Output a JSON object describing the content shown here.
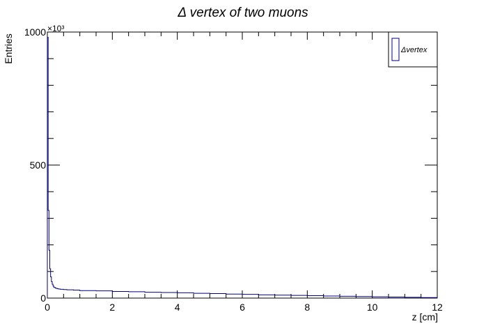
{
  "chart_data": {
    "type": "histogram",
    "title": "Δ   vertex   of   two   muons",
    "xlabel": "z [cm]",
    "ylabel": "Entries",
    "y_multiplier": "×10³",
    "xlim": [
      0,
      12
    ],
    "ylim": [
      0,
      1000
    ],
    "x_ticks": [
      0,
      2,
      4,
      6,
      8,
      10,
      12
    ],
    "y_ticks": [
      0,
      500,
      1000
    ],
    "x_tick_labels": [
      "0",
      "2",
      "4",
      "6",
      "8",
      "10",
      "12"
    ],
    "y_tick_labels": [
      "0",
      "500",
      "1000"
    ],
    "legend": {
      "position": "top-right",
      "entries": [
        "Δvertex"
      ]
    },
    "series": [
      {
        "name": "Δvertex",
        "color": "#000080",
        "bin_edges": [
          0,
          0.025,
          0.05,
          0.075,
          0.1,
          0.125,
          0.15,
          0.175,
          0.2,
          0.25,
          0.3,
          0.35,
          0.4,
          0.5,
          0.6,
          0.8,
          1.0,
          1.5,
          2.0,
          2.5,
          3.0,
          3.5,
          4.0,
          4.5,
          5.0,
          5.5,
          6.0,
          6.5,
          7.0,
          7.5,
          8.0,
          8.5,
          9.0,
          9.5,
          10.0,
          10.5,
          11.0,
          11.5,
          12.0
        ],
        "values": [
          980,
          330,
          180,
          110,
          80,
          62,
          52,
          45,
          40,
          37,
          35,
          34,
          33,
          32,
          31,
          30,
          28,
          27,
          25,
          24,
          22,
          21,
          20,
          18,
          17,
          15,
          14,
          12,
          11,
          10,
          9,
          8,
          7,
          6,
          5,
          4,
          3,
          2
        ]
      }
    ]
  }
}
